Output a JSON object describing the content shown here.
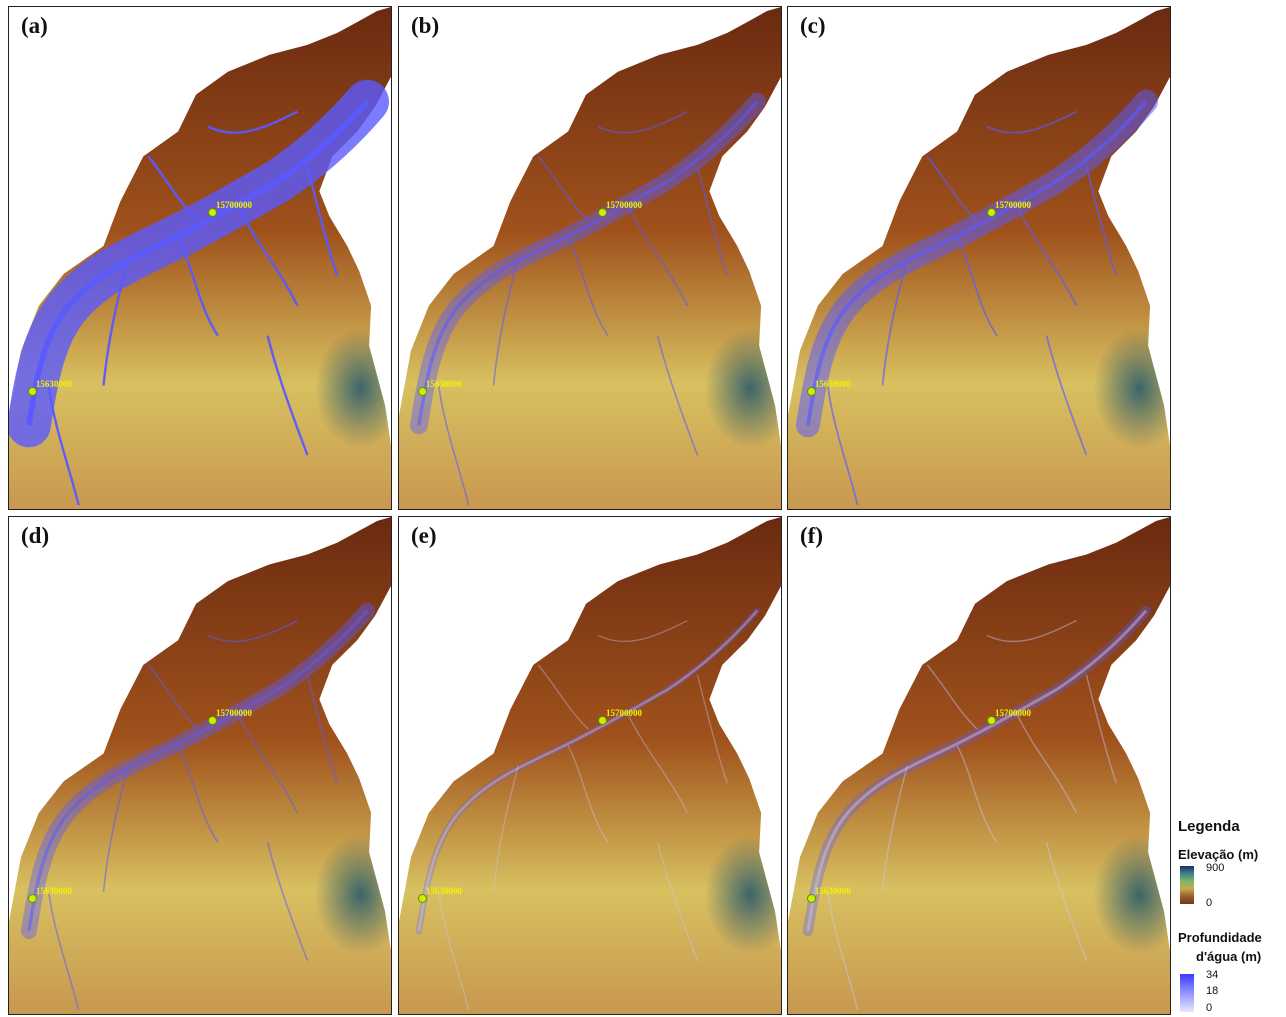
{
  "panels": [
    {
      "label": "(a)",
      "flood": 1.0
    },
    {
      "label": "(b)",
      "flood": 0.35
    },
    {
      "label": "(c)",
      "flood": 0.5
    },
    {
      "label": "(d)",
      "flood": 0.3
    },
    {
      "label": "(e)",
      "flood": 0.06
    },
    {
      "label": "(f)",
      "flood": 0.16
    }
  ],
  "stations": {
    "upstream": "15630000",
    "downstream": "15700000"
  },
  "legend": {
    "title": "Legenda",
    "elevation": {
      "title": "Elevação (m)",
      "max": "900",
      "min": "0"
    },
    "depth": {
      "title_line1": "Profundidade",
      "title_line2": "d'água (m)",
      "max": "34",
      "mid": "18",
      "min": "0"
    }
  },
  "colors": {
    "elev_low": "#6b2a10",
    "elev_mid": "#a0521c",
    "elev_high": "#d8c060",
    "elev_top": "#2a5a6a",
    "water": "#5a5aff",
    "water_light": "#c8c8ff",
    "station": "#c8f000",
    "station_label": "#f2f200"
  }
}
